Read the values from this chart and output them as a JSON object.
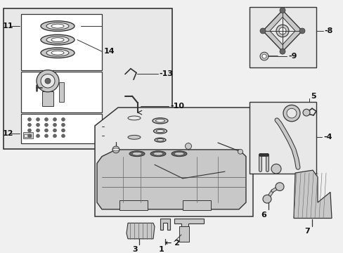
{
  "bg_color": "#f0f0f0",
  "white": "#ffffff",
  "light_gray": "#e8e8e8",
  "med_gray": "#c8c8c8",
  "dark_gray": "#666666",
  "black": "#111111",
  "line_color": "#333333",
  "figsize": [
    4.89,
    3.6
  ],
  "dpi": 100
}
